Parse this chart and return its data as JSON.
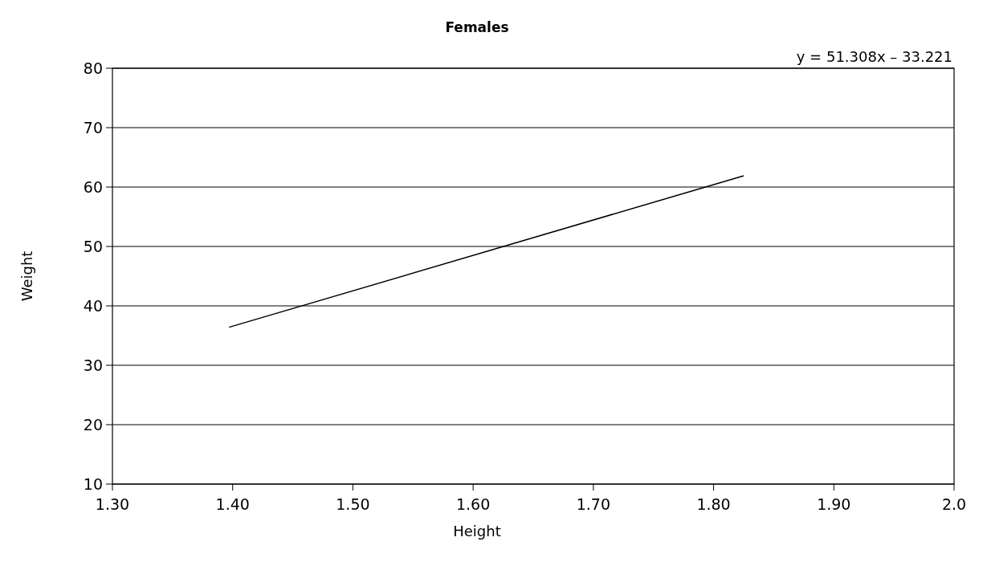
{
  "chart_data": {
    "type": "line",
    "title": "Females",
    "xlabel": "Height",
    "ylabel": "Weight",
    "annotations": [
      "y = 51.308x – 33.221"
    ],
    "x": [
      1.397,
      1.825
    ],
    "series": [
      {
        "color": "#000000",
        "values": [
          36.4,
          61.9
        ]
      }
    ],
    "xlim": [
      1.3,
      2.0
    ],
    "xticks": [
      {
        "value": 1.3,
        "label": "1.30"
      },
      {
        "value": 1.4,
        "label": "1.40"
      },
      {
        "value": 1.5,
        "label": "1.50"
      },
      {
        "value": 1.6,
        "label": "1.60"
      },
      {
        "value": 1.7,
        "label": "1.70"
      },
      {
        "value": 1.8,
        "label": "1.80"
      },
      {
        "value": 1.9,
        "label": "1.90"
      },
      {
        "value": 2.0,
        "label": "2.0"
      }
    ],
    "ylim": [
      10,
      80
    ],
    "yticks": [
      10,
      20,
      30,
      40,
      50,
      60,
      70,
      80
    ],
    "grid": "y",
    "marker": "none",
    "line_style": "solid"
  }
}
